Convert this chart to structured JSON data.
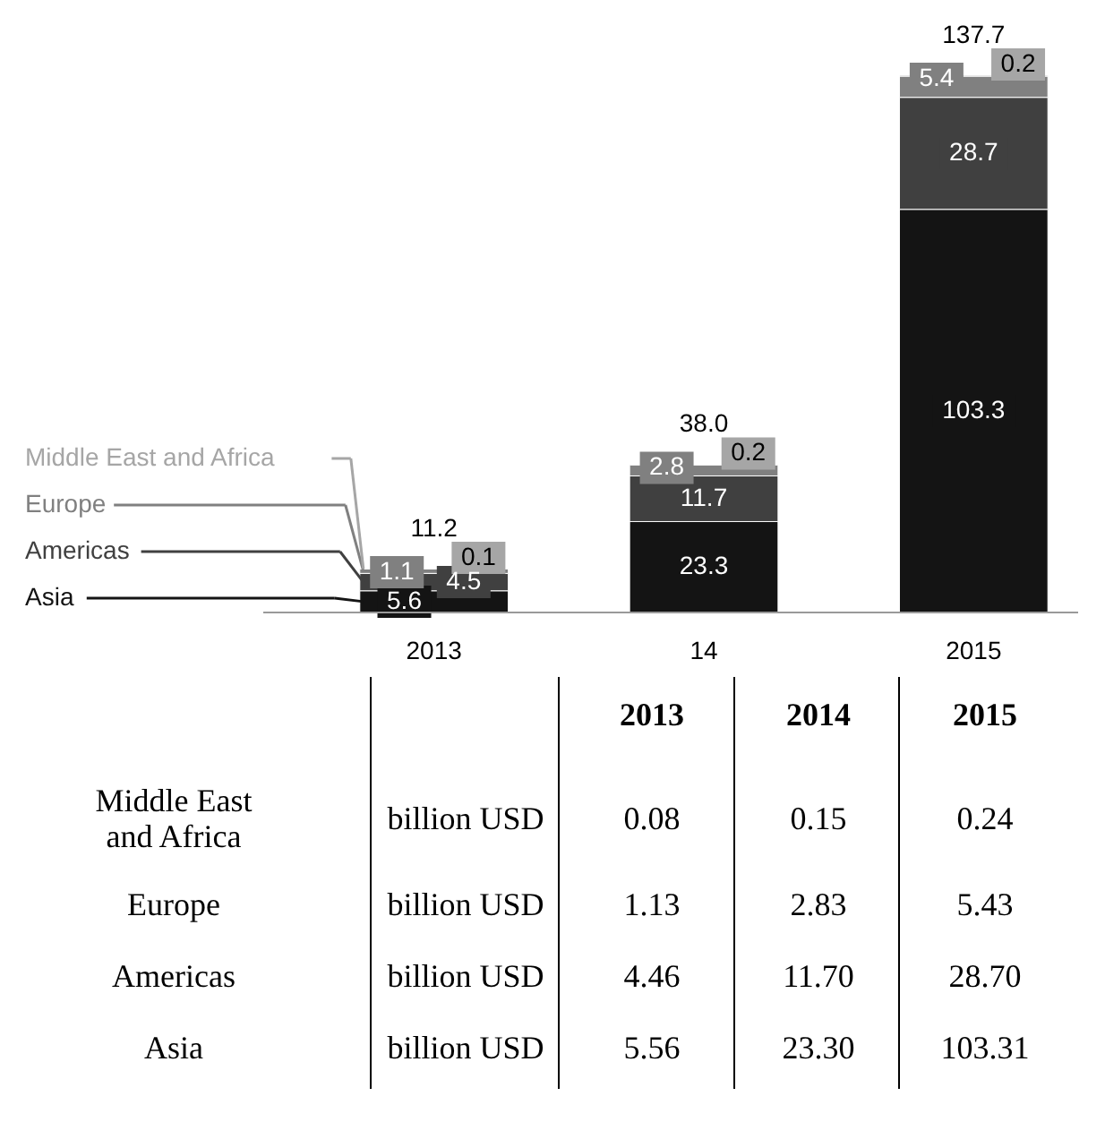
{
  "chart_data": {
    "type": "bar",
    "stacked": true,
    "categories": [
      "2013",
      "14",
      "2015"
    ],
    "series": [
      {
        "name": "Asia",
        "color": "#141414",
        "values": [
          5.56,
          23.3,
          103.31
        ],
        "value_labels": [
          "5.6",
          "23.3",
          "103.3"
        ]
      },
      {
        "name": "Americas",
        "color": "#404040",
        "values": [
          4.46,
          11.7,
          28.7
        ],
        "value_labels": [
          "4.5",
          "11.7",
          "28.7"
        ]
      },
      {
        "name": "Europe",
        "color": "#808080",
        "values": [
          1.13,
          2.83,
          5.43
        ],
        "value_labels": [
          "1.1",
          "2.8",
          "5.4"
        ]
      },
      {
        "name": "Middle East and Africa",
        "color": "#a6a6a6",
        "values": [
          0.08,
          0.15,
          0.24
        ],
        "value_labels": [
          "0.1",
          "0.2",
          "0.2"
        ]
      }
    ],
    "totals": [
      "11.2",
      "38.0",
      "137.7"
    ],
    "legend": "left",
    "annotations": [
      "billion USD",
      "2013",
      "2014",
      "2015",
      "0.08",
      "0.15",
      "0.24",
      "1.13",
      "2.83",
      "5.43",
      "4.46",
      "11.70",
      "28.70",
      "5.56",
      "23.30",
      "103.31"
    ]
  }
}
